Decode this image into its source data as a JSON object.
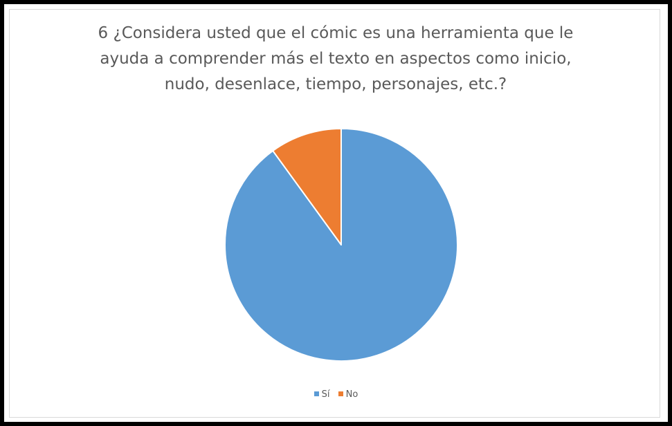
{
  "chart_data": {
    "type": "pie",
    "title_lines": [
      "6 ¿Considera usted que el cómic es una herramienta que le",
      "ayuda a comprender más el texto en aspectos como inicio,",
      "nudo, desenlace, tiempo, personajes, etc.?"
    ],
    "categories": [
      "Sí",
      "No"
    ],
    "values": [
      90,
      10
    ],
    "colors": [
      "#5B9BD5",
      "#ED7D31"
    ],
    "legend_position": "bottom"
  }
}
